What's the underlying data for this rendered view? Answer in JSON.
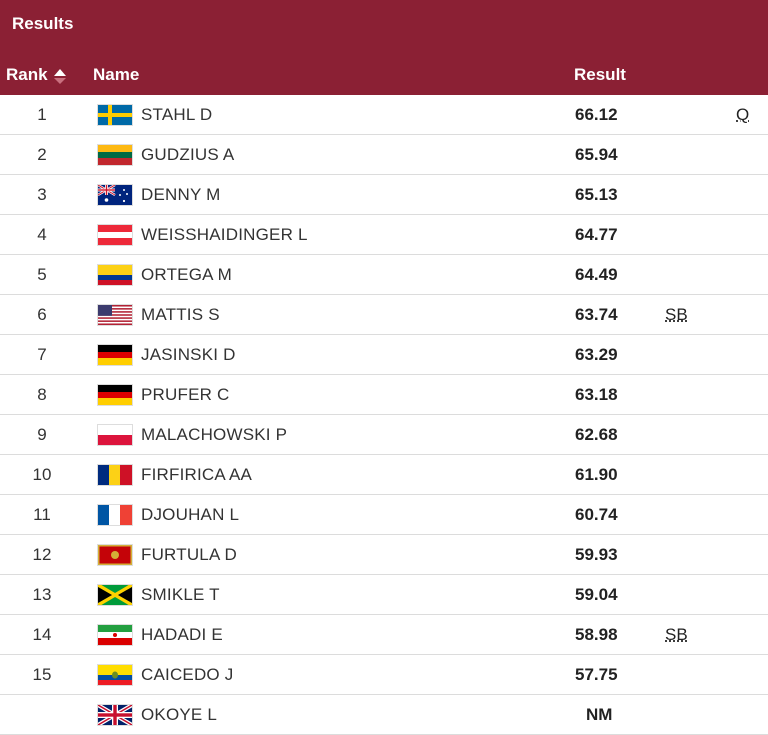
{
  "header": {
    "title": "Results",
    "col_rank": "Rank",
    "col_name": "Name",
    "col_result": "Result"
  },
  "colors": {
    "header_bg": "#8b2034"
  },
  "rows": [
    {
      "rank": "1",
      "flag": "sweden",
      "name": "STAHL D",
      "result": "66.12",
      "note": "",
      "qual": "Q"
    },
    {
      "rank": "2",
      "flag": "lithuania",
      "name": "GUDZIUS A",
      "result": "65.94",
      "note": "",
      "qual": ""
    },
    {
      "rank": "3",
      "flag": "australia",
      "name": "DENNY M",
      "result": "65.13",
      "note": "",
      "qual": ""
    },
    {
      "rank": "4",
      "flag": "austria",
      "name": "WEISSHAIDINGER L",
      "result": "64.77",
      "note": "",
      "qual": ""
    },
    {
      "rank": "5",
      "flag": "colombia",
      "name": "ORTEGA M",
      "result": "64.49",
      "note": "",
      "qual": ""
    },
    {
      "rank": "6",
      "flag": "usa",
      "name": "MATTIS S",
      "result": "63.74",
      "note": "SB",
      "qual": ""
    },
    {
      "rank": "7",
      "flag": "germany",
      "name": "JASINSKI D",
      "result": "63.29",
      "note": "",
      "qual": ""
    },
    {
      "rank": "8",
      "flag": "germany",
      "name": "PRUFER C",
      "result": "63.18",
      "note": "",
      "qual": ""
    },
    {
      "rank": "9",
      "flag": "poland",
      "name": "MALACHOWSKI P",
      "result": "62.68",
      "note": "",
      "qual": ""
    },
    {
      "rank": "10",
      "flag": "romania",
      "name": "FIRFIRICA AA",
      "result": "61.90",
      "note": "",
      "qual": ""
    },
    {
      "rank": "11",
      "flag": "france",
      "name": "DJOUHAN L",
      "result": "60.74",
      "note": "",
      "qual": ""
    },
    {
      "rank": "12",
      "flag": "montenegro",
      "name": "FURTULA D",
      "result": "59.93",
      "note": "",
      "qual": ""
    },
    {
      "rank": "13",
      "flag": "jamaica",
      "name": "SMIKLE T",
      "result": "59.04",
      "note": "",
      "qual": ""
    },
    {
      "rank": "14",
      "flag": "iran",
      "name": "HADADI E",
      "result": "58.98",
      "note": "SB",
      "qual": ""
    },
    {
      "rank": "15",
      "flag": "ecuador",
      "name": "CAICEDO J",
      "result": "57.75",
      "note": "",
      "qual": ""
    },
    {
      "rank": "",
      "flag": "uk",
      "name": "OKOYE L",
      "result": "NM",
      "note": "",
      "qual": ""
    }
  ]
}
